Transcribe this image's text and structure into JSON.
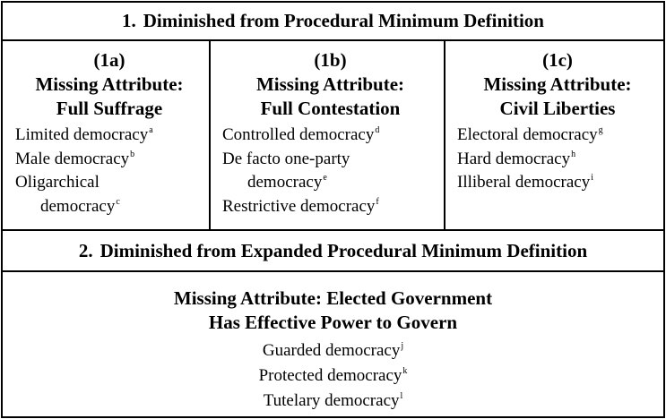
{
  "section1": {
    "number": "1.",
    "title": "Diminished from Procedural Minimum Definition"
  },
  "columns": [
    {
      "label": "(1a)",
      "heading_line1": "Missing Attribute:",
      "heading_line2": "Full Suffrage",
      "items": [
        {
          "lines": [
            "Limited democracy"
          ],
          "note": "a"
        },
        {
          "lines": [
            "Male democracy"
          ],
          "note": "b"
        },
        {
          "lines": [
            "Oligarchical",
            "democracy"
          ],
          "note": "c"
        }
      ]
    },
    {
      "label": "(1b)",
      "heading_line1": "Missing Attribute:",
      "heading_line2": "Full Contestation",
      "items": [
        {
          "lines": [
            "Controlled democracy"
          ],
          "note": "d"
        },
        {
          "lines": [
            "De facto one-party",
            "democracy"
          ],
          "note": "e"
        },
        {
          "lines": [
            "Restrictive democracy"
          ],
          "note": "f"
        }
      ]
    },
    {
      "label": "(1c)",
      "heading_line1": "Missing Attribute:",
      "heading_line2": "Civil Liberties",
      "items": [
        {
          "lines": [
            "Electoral democracy"
          ],
          "note": "g"
        },
        {
          "lines": [
            "Hard democracy"
          ],
          "note": "h"
        },
        {
          "lines": [
            "Illiberal democracy"
          ],
          "note": "i"
        }
      ]
    }
  ],
  "section2": {
    "number": "2.",
    "title": "Diminished from Expanded Procedural Minimum Definition",
    "heading_line1": "Missing Attribute:  Elected Government",
    "heading_line2": "Has Effective Power to Govern",
    "items": [
      {
        "text": "Guarded democracy",
        "note": "j"
      },
      {
        "text": "Protected democracy",
        "note": "k"
      },
      {
        "text": "Tutelary democracy",
        "note": "l"
      }
    ]
  }
}
